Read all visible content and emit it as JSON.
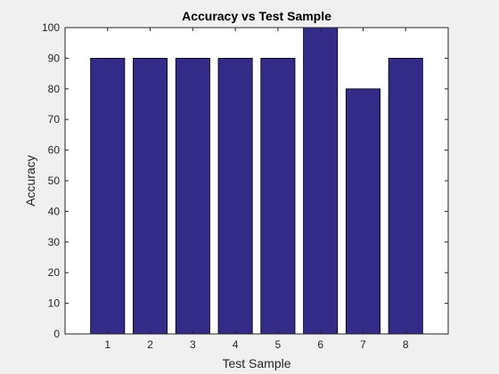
{
  "chart_data": {
    "type": "bar",
    "title": "Accuracy vs Test Sample",
    "xlabel": "Test Sample",
    "ylabel": "Accuracy",
    "categories": [
      "1",
      "2",
      "3",
      "4",
      "5",
      "6",
      "7",
      "8"
    ],
    "values": [
      90,
      90,
      90,
      90,
      90,
      100,
      80,
      90
    ],
    "ylim": [
      0,
      100
    ],
    "yticks": [
      "0",
      "10",
      "20",
      "30",
      "40",
      "50",
      "60",
      "70",
      "80",
      "90",
      "100"
    ],
    "grid": false,
    "legend": "none",
    "colors": {
      "bar_fill": "#342A87",
      "bar_edge": "#000000",
      "axes_background": "#ffffff",
      "figure_background": "#f0f0f0",
      "axis_color": "#262626"
    }
  }
}
